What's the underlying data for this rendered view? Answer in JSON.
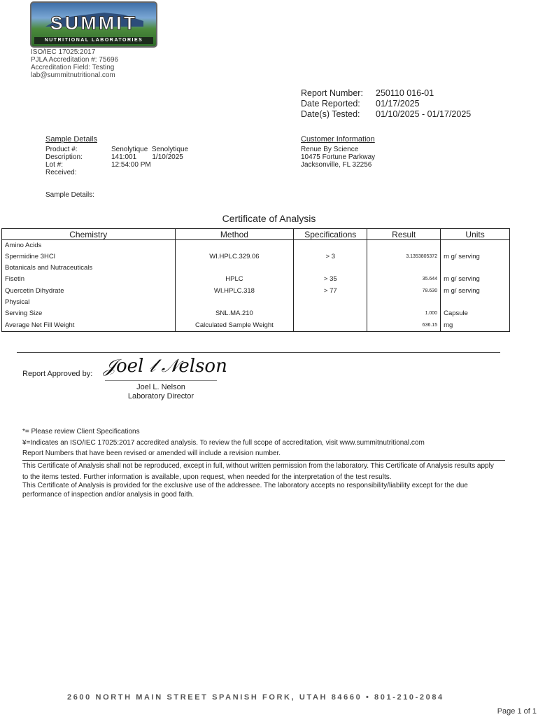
{
  "lab": {
    "logo_text": "SUMMIT",
    "logo_subtext": "NUTRITIONAL LABORATORIES",
    "info": [
      "ISO/IEC 17025:2017",
      "PJLA Accreditation #: 75696",
      "Accreditation Field: Testing",
      "lab@summitnutritional.com"
    ]
  },
  "report": {
    "number_label": "Report Number:",
    "number": "250110 016-01",
    "date_reported_label": "Date Reported:",
    "date_reported": "01/17/2025",
    "dates_tested_label": "Date(s) Tested:",
    "dates_tested": "01/10/2025 - 01/17/2025"
  },
  "sample": {
    "heading": "Sample Details",
    "labels": [
      "Product #:",
      "Description:",
      "Lot #:",
      "Received:"
    ],
    "values": [
      "Senolytique  Senolytique",
      "141:001        1/10/2025",
      "12:54:00 PM",
      ""
    ],
    "details_label": "Sample Details:"
  },
  "customer": {
    "heading": "Customer Information",
    "lines": [
      "Renue By Science",
      "10475 Fortune Parkway",
      "Jacksonville, FL 32256"
    ]
  },
  "title": "Certificate of Analysis",
  "table": {
    "headers": [
      "Chemistry",
      "Method",
      "Specifications",
      "Result",
      "Units"
    ],
    "rows": [
      {
        "group": "Amino Acids"
      },
      {
        "name": "Spermidine 3HCl",
        "method": "WI.HPLC.329.06",
        "spec": "> 3",
        "result": "3.1353805372",
        "units": "m g/ serving"
      },
      {
        "group": "Botanicals and Nutraceuticals"
      },
      {
        "name": "Fisetin",
        "method": "HPLC",
        "spec": "> 35",
        "result": "35.644",
        "units": "m g/ serving"
      },
      {
        "name": "Quercetin Dihydrate",
        "method": "WI.HPLC.318",
        "spec": "> 77",
        "result": "78.630",
        "units": "m g/ serving"
      },
      {
        "group": "Physical"
      },
      {
        "name": "Serving Size",
        "method": "SNL.MA.210",
        "spec": "",
        "result": "1.000",
        "units": "Capsule"
      },
      {
        "name": "Average Net Fill Weight",
        "method": "Calculated Sample Weight",
        "spec": "",
        "result": "636.15",
        "units": "mg"
      }
    ]
  },
  "approval": {
    "label": "Report Approved by:",
    "signature": "Joel L Nelson",
    "name": "Joel L. Nelson",
    "title": "Laboratory Director"
  },
  "notes": [
    "*= Please review Client Specifications",
    "¥=Indicates an ISO/IEC 17025:2017 accredited analysis. To review the full scope of accreditation, visit www.summitnutritional.com",
    "Report Numbers that have been revised or amended will include a revision number."
  ],
  "disclaimer": [
    "This Certificate of Analysis shall not be reproduced, except in full, without written permission from the laboratory. This Certificate of Analysis results apply",
    "to the items tested. Further information is available, upon request, when needed for the interpretation of the test results.",
    "This Certificate of Analysis is provided for the exclusive use of the addressee. The laboratory accepts no responsibility/liability except for the due",
    "performance of inspection and/or analysis in good faith."
  ],
  "footer": {
    "address": "2600 NORTH MAIN STREET SPANISH FORK, UTAH 84660 • 801-210-2084",
    "page": "Page 1 of 1"
  }
}
